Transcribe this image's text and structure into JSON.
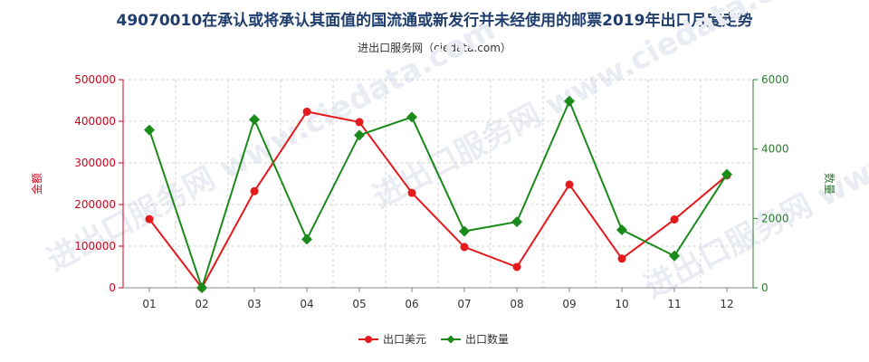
{
  "title": "49070010在承认或将承认其面值的国流通或新发行并未经使用的邮票2019年出口月度走势",
  "subtitle": "进出口服务网（ciedata.com）",
  "watermark": "进出口服务网 www.ciedata.com",
  "colors": {
    "export_value": "#e41a1c",
    "export_qty": "#1a8a1a",
    "left_axis": "#d0021b",
    "right_axis": "#2e7d32"
  },
  "chart_data": {
    "type": "line",
    "categories": [
      "01",
      "02",
      "03",
      "04",
      "05",
      "06",
      "07",
      "08",
      "09",
      "10",
      "11",
      "12"
    ],
    "y_left": {
      "label": "金额",
      "ylim": [
        0,
        500000
      ],
      "ticks": [
        0,
        100000,
        200000,
        300000,
        400000,
        500000
      ]
    },
    "y_right": {
      "label": "数量",
      "ylim": [
        0,
        6000
      ],
      "ticks": [
        0,
        2000,
        4000,
        6000
      ]
    },
    "series": [
      {
        "name": "出口美元",
        "axis": "left",
        "color": "#e41a1c",
        "values": [
          165000,
          0,
          232000,
          423000,
          398000,
          228000,
          98000,
          50000,
          248000,
          70000,
          164000,
          270000
        ]
      },
      {
        "name": "出口数量",
        "axis": "right",
        "color": "#1a8a1a",
        "values": [
          4550,
          0,
          4850,
          1400,
          4400,
          4920,
          1630,
          1900,
          5380,
          1670,
          920,
          3270
        ]
      }
    ],
    "grid": true,
    "legend": "bottom-center"
  }
}
